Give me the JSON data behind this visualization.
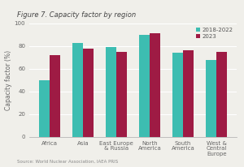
{
  "title": "Figure 7. Capacity factor by region",
  "ylabel": "Capacity factor (%)",
  "source": "Source: World Nuclear Association, IAEA PRIS",
  "categories": [
    "Africa",
    "Asia",
    "East Europe\n& Russia",
    "North\nAmerica",
    "South\nAmerica",
    "West &\nCentral\nEurope"
  ],
  "series_2018_2022": [
    50,
    83,
    79,
    90,
    74,
    68
  ],
  "series_2023": [
    72,
    78,
    75,
    91,
    76,
    75
  ],
  "color_2018_2022": "#3dbdb1",
  "color_2023": "#9e1b44",
  "legend_labels": [
    "2018-2022",
    "2023"
  ],
  "ylim": [
    0,
    100
  ],
  "yticks": [
    0,
    20,
    40,
    60,
    80,
    100
  ],
  "background_color": "#f0efea",
  "bar_width": 0.32,
  "title_fontsize": 6.0,
  "axis_fontsize": 5.5,
  "tick_fontsize": 5.0,
  "legend_fontsize": 5.0,
  "source_fontsize": 4.0
}
